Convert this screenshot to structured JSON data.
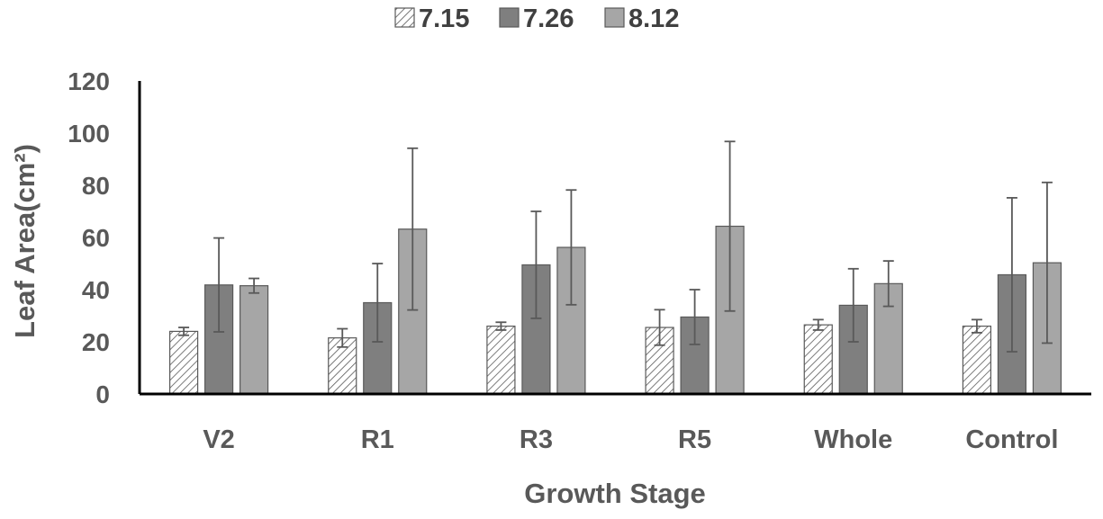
{
  "chart_data": {
    "type": "bar",
    "title": "",
    "xlabel": "Growth Stage",
    "ylabel": "Leaf Area(cm²)",
    "ylim": [
      0,
      120
    ],
    "yticks": [
      "0",
      "20",
      "40",
      "60",
      "80",
      "100",
      "120"
    ],
    "grid": false,
    "legend_position": "top-center",
    "categories": [
      "V2",
      "R1",
      "R3",
      "R5",
      "Whole",
      "Control"
    ],
    "series": [
      {
        "name": "7.15",
        "fill": "hatch",
        "color": "#ffffff",
        "values": [
          24,
          21.5,
          26,
          25.5,
          26.5,
          26
        ],
        "errors": [
          1.5,
          3.5,
          1.5,
          6.8,
          2,
          2.5
        ]
      },
      {
        "name": "7.26",
        "fill": "solid",
        "color": "#7f7f7f",
        "values": [
          41.8,
          35,
          49.5,
          29.5,
          34,
          45.7
        ],
        "errors": [
          18,
          15,
          20.5,
          10.5,
          14,
          29.5
        ]
      },
      {
        "name": "8.12",
        "fill": "solid",
        "color": "#a6a6a6",
        "values": [
          41.5,
          63.2,
          56.2,
          64.3,
          42.3,
          50.3
        ],
        "errors": [
          2.8,
          31,
          22,
          32.5,
          8.7,
          30.8
        ]
      }
    ]
  }
}
